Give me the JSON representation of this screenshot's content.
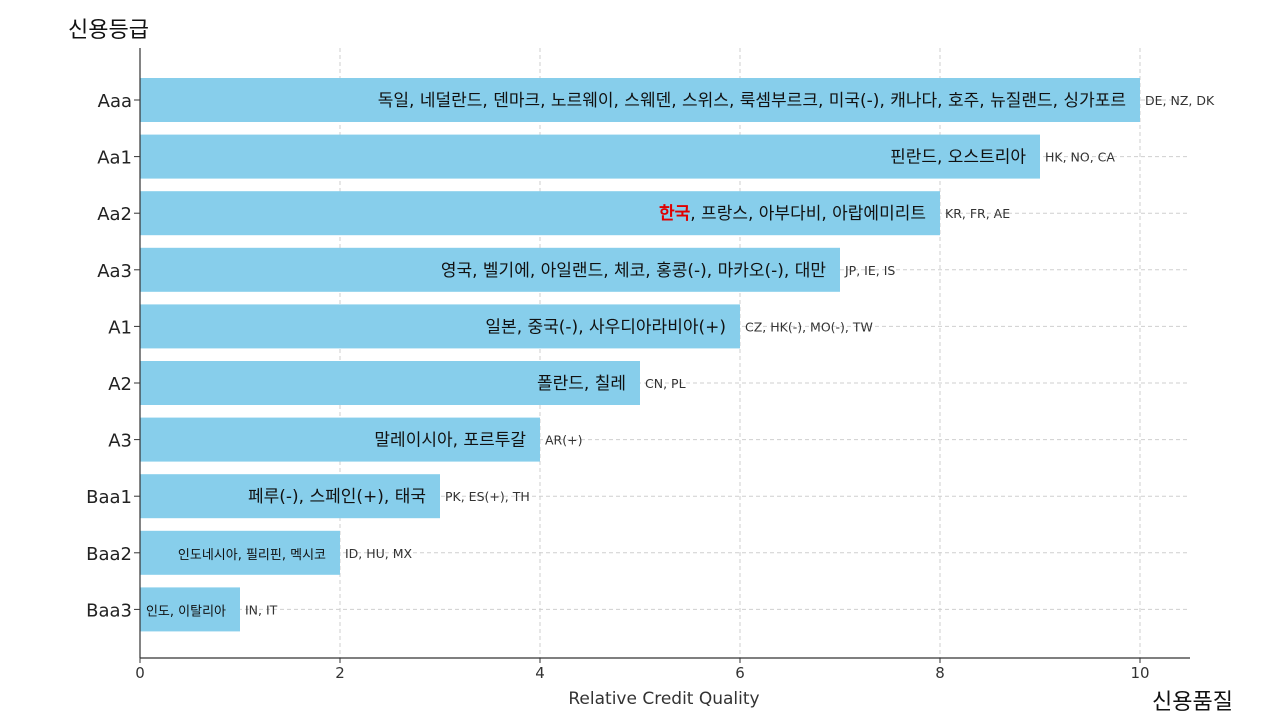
{
  "chart_data": {
    "type": "bar",
    "orientation": "horizontal",
    "title": "",
    "xlabel": "Relative Credit Quality",
    "ylabel": "",
    "y_corner_label": "신용등급",
    "x_corner_label": "신용품질",
    "xlim": [
      0,
      10.5
    ],
    "xticks": [
      0,
      2,
      4,
      6,
      8,
      10
    ],
    "grid": true,
    "bar_color": "#87ceeb",
    "highlight_color": "#e00000",
    "categories": [
      "Aaa",
      "Aa1",
      "Aa2",
      "Aa3",
      "A1",
      "A2",
      "A3",
      "Baa1",
      "Baa2",
      "Baa3"
    ],
    "values": [
      10,
      9,
      8,
      7,
      6,
      5,
      4,
      3,
      2,
      1
    ],
    "inside_labels": [
      "독일, 네덜란드, 덴마크, 노르웨이, 스웨덴, 스위스, 룩셈부르크, 미국(-), 캐나다, 호주, 뉴질랜드, 싱가포르",
      "핀란드, 오스트리아",
      "프랑스, 아부다비, 아랍에미리트",
      "영국, 벨기에, 아일랜드, 체코, 홍콩(-), 마카오(-), 대만",
      "일본, 중국(-), 사우디아라비아(+)",
      "폴란드, 칠레",
      "말레이시아, 포르투갈",
      "페루(-), 스페인(+), 태국",
      "인도네시아, 필리핀, 멕시코",
      "인도, 이탈리아"
    ],
    "highlight_prefix": [
      "",
      "",
      "한국",
      "",
      "",
      "",
      "",
      "",
      "",
      ""
    ],
    "outside_labels": [
      "DE, NZ, DK",
      "HK, NO, CA",
      "KR, FR, AE",
      "JP, IE, IS",
      "CZ, HK(-), MO(-), TW",
      "CN, PL",
      "AR(+)",
      "PK, ES(+), TH",
      "ID, HU, MX",
      "IN, IT"
    ]
  }
}
